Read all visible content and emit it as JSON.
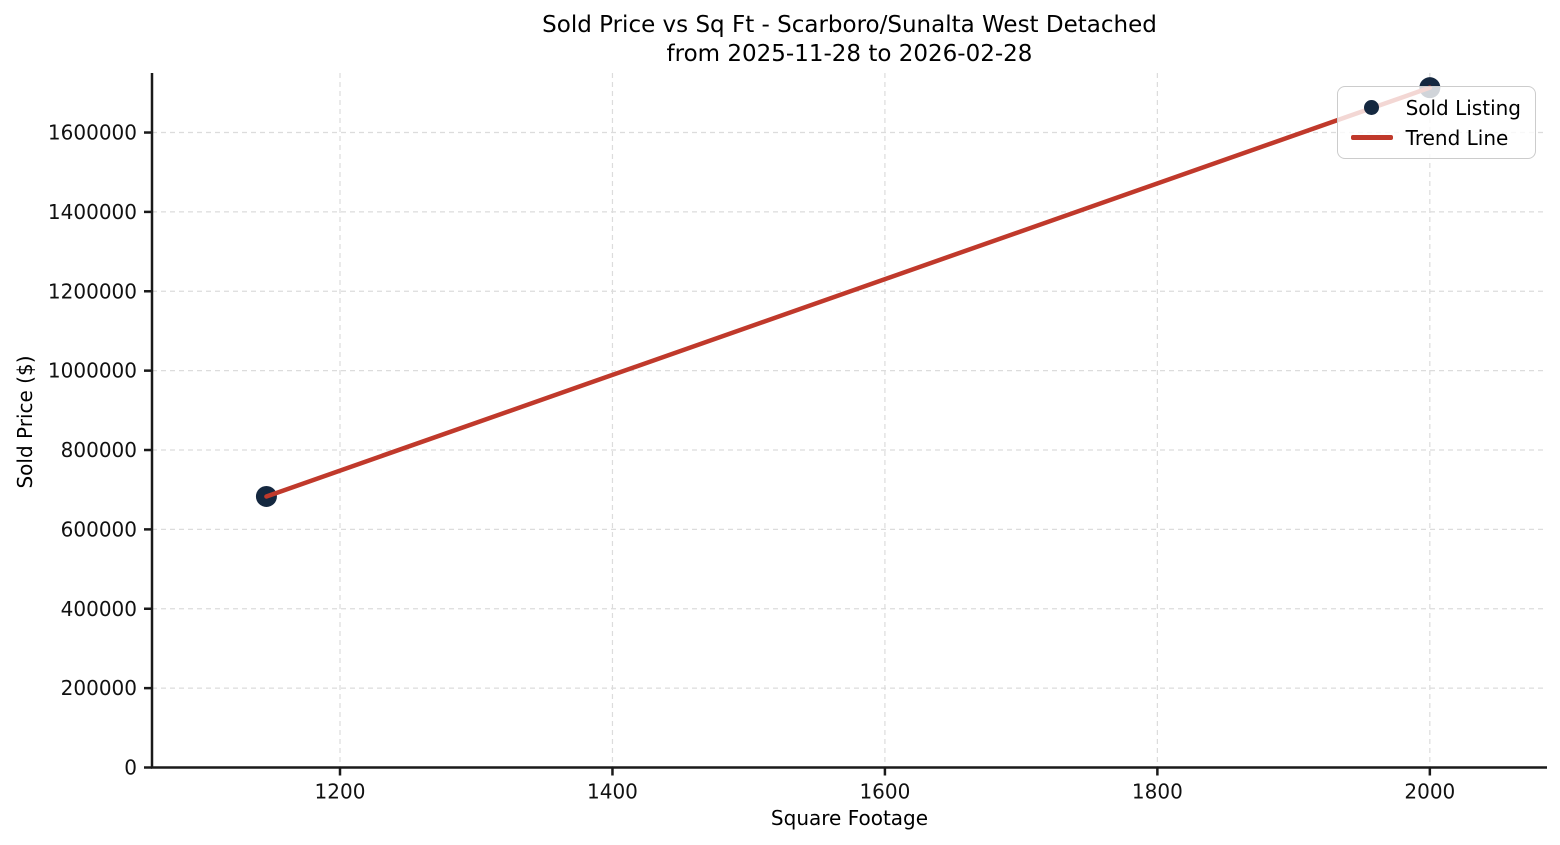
{
  "title": {
    "line1": "Sold Price vs Sq Ft - Scarboro/Sunalta West Detached",
    "line2": "from 2025-11-28 to 2026-02-28"
  },
  "axes": {
    "xlabel": "Square Footage",
    "ylabel": "Sold Price ($)"
  },
  "legend": {
    "sold_listing_label": "Sold Listing",
    "trend_line_label": "Trend Line"
  },
  "colors": {
    "point": "#152840",
    "trend": "#c0392b",
    "grid": "#dcdcdc",
    "spine": "#1a1a1a",
    "tick_text": "#111111",
    "legend_border": "#cccccc"
  },
  "chart_data": {
    "type": "scatter",
    "title": "Sold Price vs Sq Ft - Scarboro/Sunalta West Detached from 2025-11-28 to 2026-02-28",
    "xlabel": "Square Footage",
    "ylabel": "Sold Price ($)",
    "series": [
      {
        "name": "Sold Listing",
        "type": "scatter",
        "points": [
          {
            "sqft": 1146,
            "price": 683000
          },
          {
            "sqft": 2000,
            "price": 1713000
          }
        ]
      },
      {
        "name": "Trend Line",
        "type": "line",
        "x": [
          1146,
          2000
        ],
        "y": [
          683000,
          1713000
        ]
      }
    ],
    "xticks": [
      1200,
      1400,
      1600,
      1800,
      2000
    ],
    "yticks": [
      0,
      200000,
      400000,
      600000,
      800000,
      1000000,
      1200000,
      1400000,
      1600000
    ],
    "xlim": [
      1062,
      2086
    ],
    "ylim": [
      0,
      1750000
    ],
    "grid": true,
    "grid_style": "dashed",
    "legend_position": "upper right"
  }
}
